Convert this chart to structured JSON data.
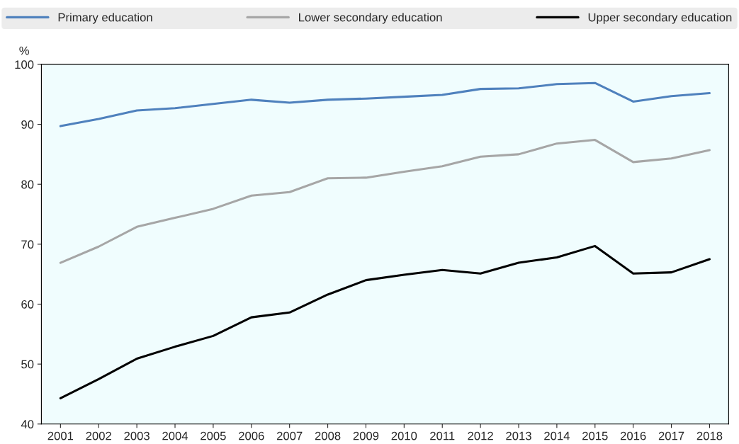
{
  "chart_data": {
    "type": "line",
    "ylabel": "%",
    "categories": [
      "2001",
      "2002",
      "2003",
      "2004",
      "2005",
      "2006",
      "2007",
      "2008",
      "2009",
      "2010",
      "2011",
      "2012",
      "2013",
      "2014",
      "2015",
      "2016",
      "2017",
      "2018"
    ],
    "series": [
      {
        "name": "Primary education",
        "color": "#4f81bd",
        "values": [
          89.7,
          90.9,
          92.3,
          92.7,
          93.4,
          94.1,
          93.6,
          94.1,
          94.3,
          94.6,
          94.9,
          95.9,
          96.0,
          96.7,
          96.9,
          93.8,
          94.7,
          95.2
        ]
      },
      {
        "name": "Lower secondary education",
        "color": "#a6a6a6",
        "values": [
          66.9,
          69.6,
          72.9,
          74.4,
          75.9,
          78.1,
          78.7,
          81.0,
          81.1,
          82.1,
          83.0,
          84.6,
          85.0,
          86.8,
          87.4,
          83.7,
          84.3,
          85.7
        ]
      },
      {
        "name": "Upper secondary education",
        "color": "#000000",
        "values": [
          44.3,
          47.5,
          50.9,
          52.9,
          54.7,
          57.8,
          58.6,
          61.6,
          64.0,
          64.9,
          65.7,
          65.1,
          66.9,
          67.8,
          69.7,
          65.1,
          65.3,
          67.5
        ]
      }
    ],
    "ylim": [
      40,
      100
    ],
    "yticks": [
      40,
      50,
      60,
      70,
      80,
      90,
      100
    ],
    "grid": false,
    "legend": "top",
    "marker": "none",
    "line_style": "solid"
  }
}
